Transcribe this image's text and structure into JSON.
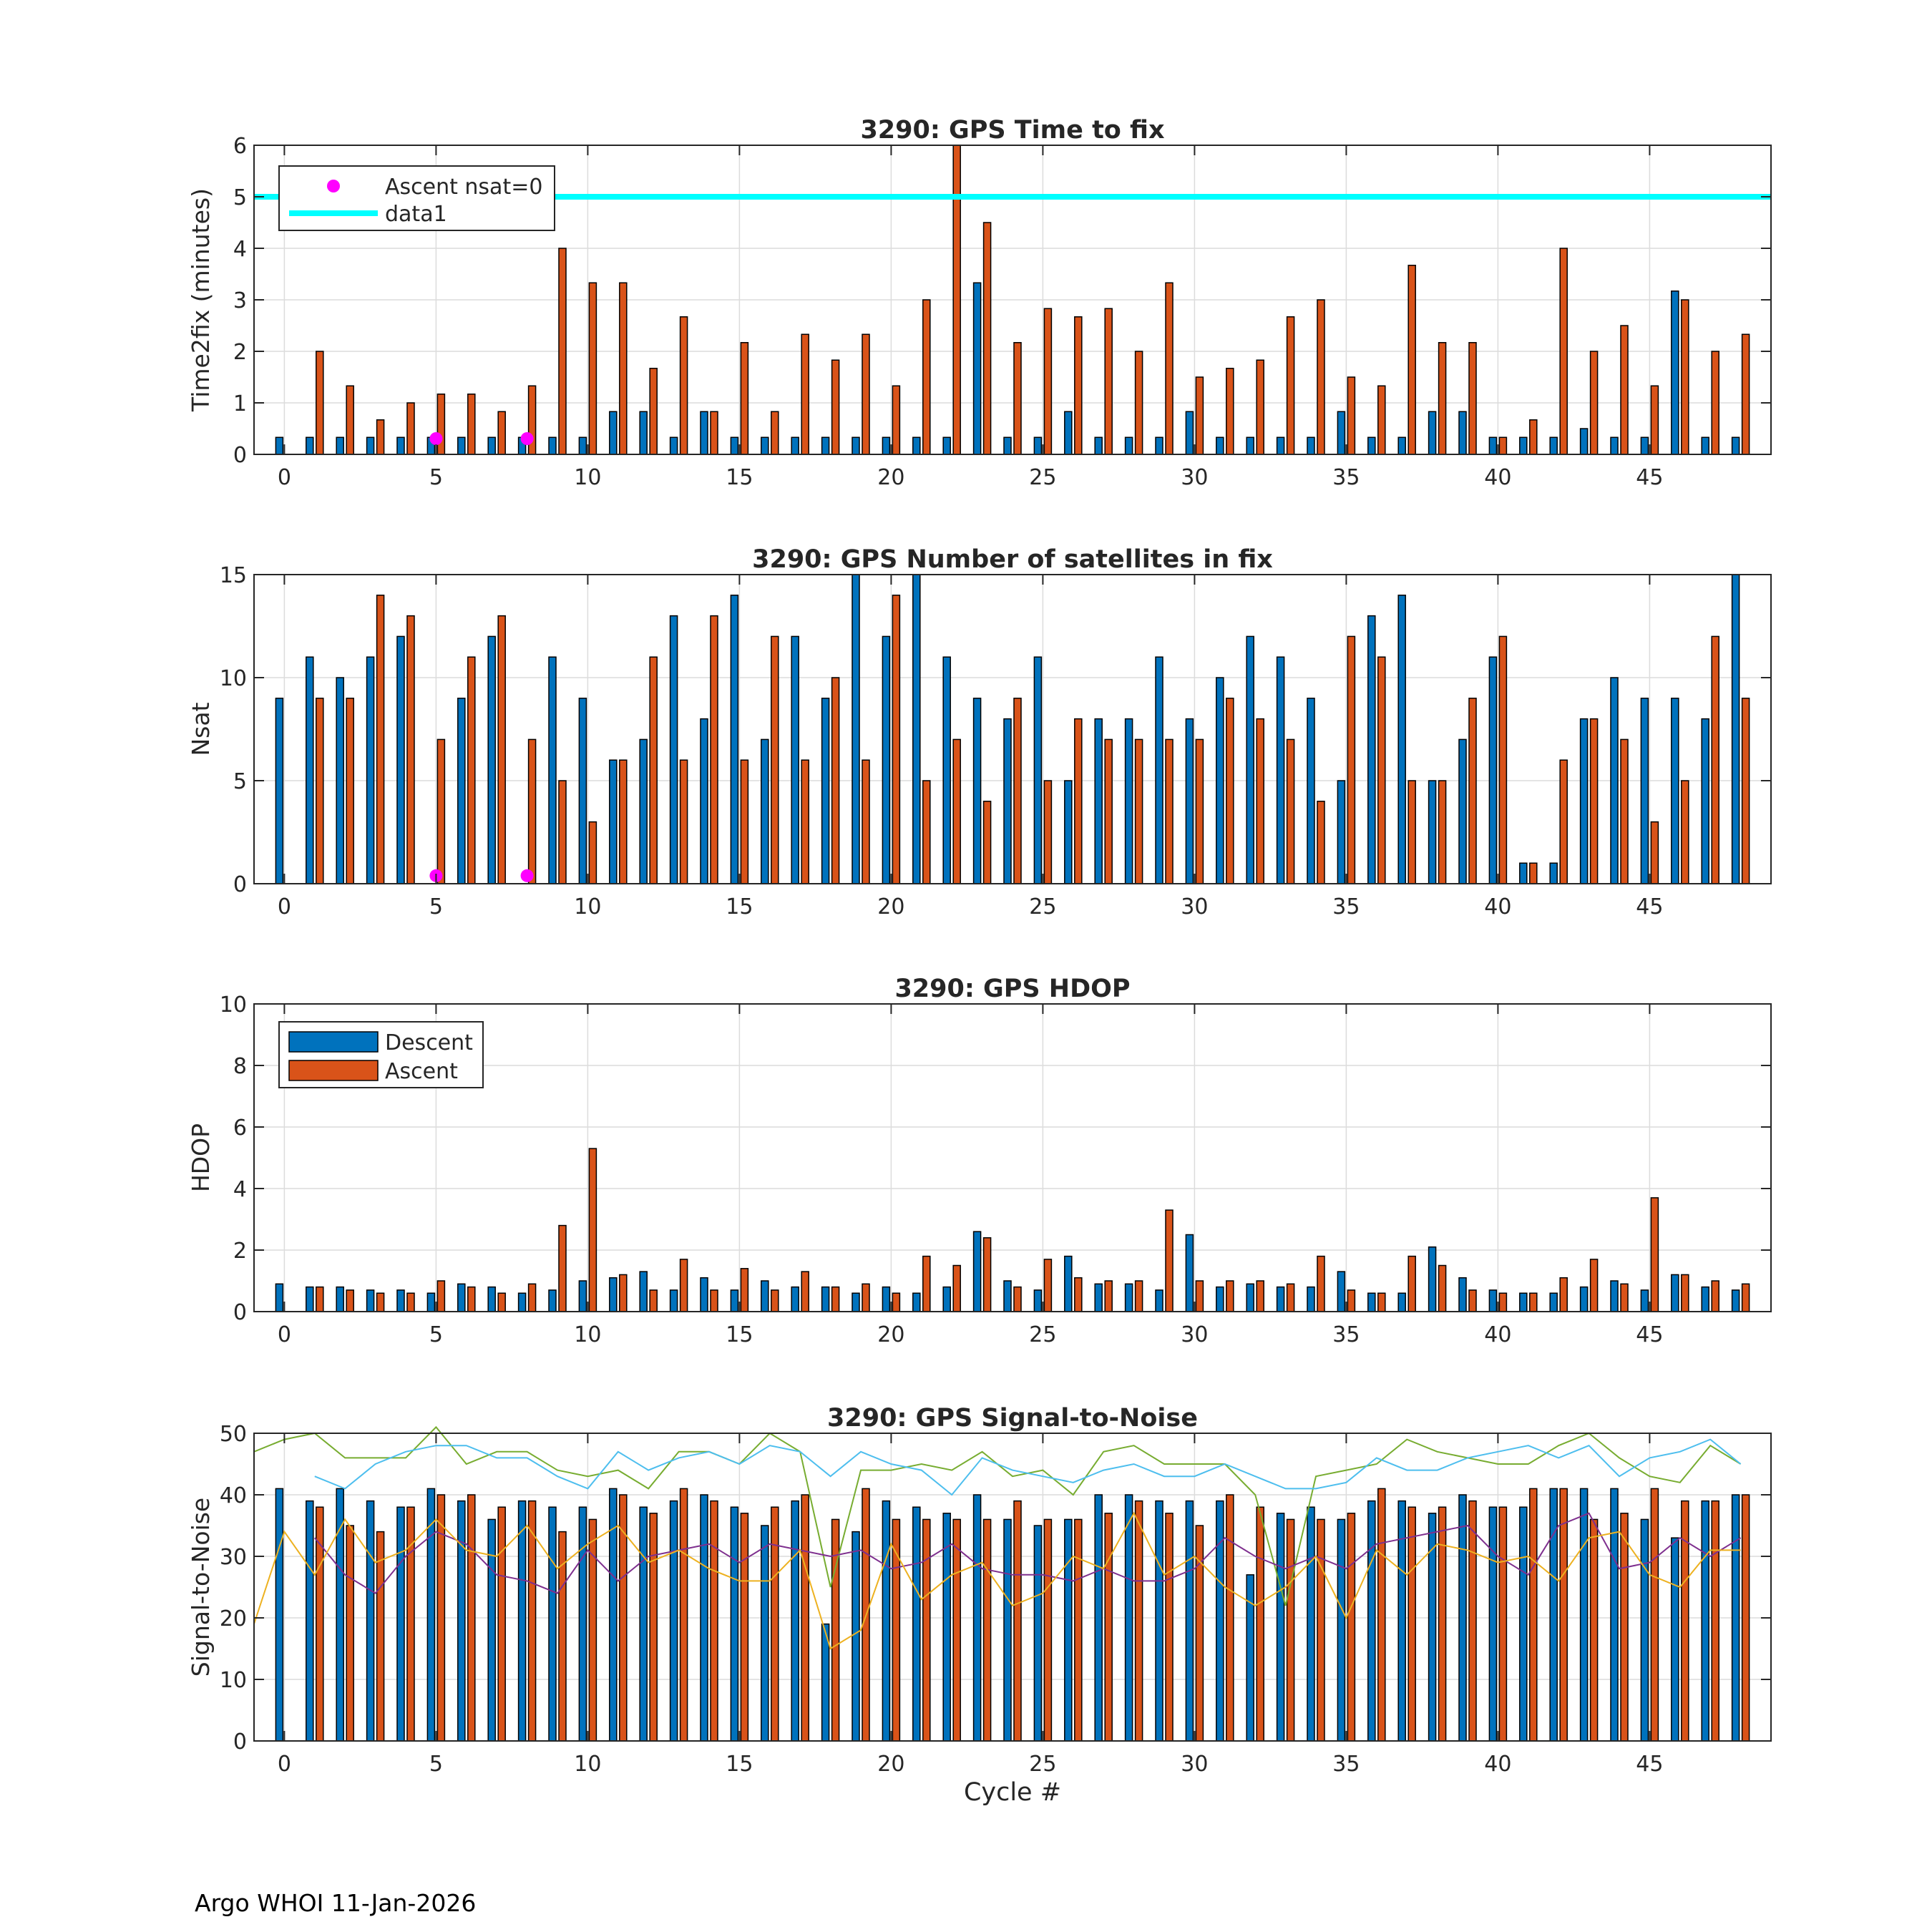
{
  "footer": "Argo WHOI 11-Jan-2026",
  "colors": {
    "descent": "#0072BD",
    "ascent": "#D95319",
    "zero_marker": "#FF00FF",
    "threshold": "#00FFFF",
    "snr_line1": "#77AC30",
    "snr_line2": "#4DBEEE",
    "snr_line3": "#7E2F8E",
    "snr_line4": "#EDB120"
  },
  "chart_data": [
    {
      "type": "bar",
      "title": "3290: GPS Time to fix",
      "ylabel": "Time2fix (minutes)",
      "xlabel": "",
      "xlim": [
        -1,
        49
      ],
      "ylim": [
        0,
        6
      ],
      "yticks": [
        0,
        1,
        2,
        3,
        4,
        5,
        6
      ],
      "xticks": [
        0,
        5,
        10,
        15,
        20,
        25,
        30,
        35,
        40,
        45
      ],
      "grid": true,
      "legend": {
        "location": "top-left",
        "entries": [
          "Ascent nsat=0",
          "data1"
        ]
      },
      "threshold": {
        "name": "data1",
        "y": 5
      },
      "zero_nsat_markers": {
        "name": "Ascent nsat=0",
        "x": [
          5,
          8
        ],
        "y": [
          0.25,
          0.25
        ]
      },
      "series": [
        {
          "name": "Descent",
          "values": [
            0.33,
            0.33,
            0.33,
            0.33,
            0.33,
            0.33,
            0.33,
            0.33,
            0.33,
            0.33,
            0.33,
            0.83,
            0.83,
            0.33,
            0.83,
            0.33,
            0.33,
            0.33,
            0.33,
            0.33,
            0.33,
            0.33,
            0.33,
            3.33,
            0.33,
            0.33,
            0.83,
            0.33,
            0.33,
            0.33,
            0.83,
            0.33,
            0.33,
            0.33,
            0.33,
            0.83,
            0.33,
            0.33,
            0.83,
            0.83,
            0.33,
            0.33,
            0.33,
            0.5,
            0.33,
            0.33,
            3.17,
            0.33,
            0.33
          ]
        },
        {
          "name": "Ascent",
          "values": [
            null,
            2.0,
            1.33,
            0.67,
            1.0,
            1.17,
            1.17,
            0.83,
            1.33,
            4.0,
            3.33,
            3.33,
            1.67,
            2.67,
            0.83,
            2.17,
            0.83,
            2.33,
            1.83,
            2.33,
            1.33,
            3.0,
            6.0,
            4.5,
            2.17,
            2.83,
            2.67,
            2.83,
            2.0,
            3.33,
            1.5,
            1.67,
            1.83,
            2.67,
            3.0,
            1.5,
            1.33,
            3.67,
            2.17,
            2.17,
            0.33,
            0.67,
            4.0,
            2.0,
            2.5,
            1.33,
            3.0,
            2.0,
            2.33
          ]
        }
      ]
    },
    {
      "type": "bar",
      "title": "3290: GPS Number of satellites in fix",
      "ylabel": "Nsat",
      "xlabel": "",
      "xlim": [
        -1,
        49
      ],
      "ylim": [
        0,
        15
      ],
      "yticks": [
        0,
        5,
        10,
        15
      ],
      "xticks": [
        0,
        5,
        10,
        15,
        20,
        25,
        30,
        35,
        40,
        45
      ],
      "grid": true,
      "zero_nsat_markers": {
        "name": "Ascent nsat=0",
        "x": [
          5,
          8
        ],
        "y": [
          0.25,
          0.25
        ]
      },
      "series": [
        {
          "name": "Descent",
          "values": [
            9,
            11,
            10,
            11,
            12,
            null,
            9,
            12,
            null,
            11,
            9,
            6,
            7,
            13,
            8,
            14,
            7,
            12,
            9,
            15,
            12,
            15,
            11,
            9,
            8,
            11,
            5,
            8,
            8,
            11,
            8,
            10,
            12,
            11,
            9,
            5,
            13,
            14,
            5,
            7,
            11,
            1,
            1,
            8,
            10,
            9,
            9,
            8,
            15
          ]
        },
        {
          "name": "Ascent",
          "values": [
            null,
            9,
            9,
            14,
            13,
            7,
            11,
            13,
            7,
            5,
            3,
            6,
            11,
            6,
            13,
            6,
            12,
            6,
            10,
            6,
            14,
            5,
            7,
            4,
            9,
            5,
            8,
            7,
            7,
            7,
            7,
            9,
            8,
            7,
            4,
            12,
            11,
            5,
            5,
            9,
            12,
            1,
            6,
            8,
            7,
            3,
            5,
            12,
            9
          ]
        }
      ]
    },
    {
      "type": "bar",
      "title": "3290: GPS HDOP",
      "ylabel": "HDOP",
      "xlabel": "",
      "xlim": [
        -1,
        49
      ],
      "ylim": [
        0,
        10
      ],
      "yticks": [
        0,
        2,
        4,
        6,
        8,
        10
      ],
      "xticks": [
        0,
        5,
        10,
        15,
        20,
        25,
        30,
        35,
        40,
        45
      ],
      "grid": true,
      "legend": {
        "location": "top-left",
        "entries": [
          "Descent",
          "Ascent"
        ]
      },
      "series": [
        {
          "name": "Descent",
          "values": [
            0.9,
            0.8,
            0.8,
            0.7,
            0.7,
            0.6,
            0.9,
            0.8,
            0.6,
            0.7,
            1.0,
            1.1,
            1.3,
            0.7,
            1.1,
            0.7,
            1.0,
            0.8,
            0.8,
            0.6,
            0.8,
            0.6,
            0.8,
            2.6,
            1.0,
            0.7,
            1.8,
            0.9,
            0.9,
            0.7,
            2.5,
            0.8,
            0.9,
            0.8,
            0.8,
            1.3,
            0.6,
            0.6,
            2.1,
            1.1,
            0.7,
            0.6,
            0.6,
            0.8,
            1.0,
            0.7,
            1.2,
            0.8,
            0.7
          ]
        },
        {
          "name": "Ascent",
          "values": [
            null,
            0.8,
            0.7,
            0.6,
            0.6,
            1.0,
            0.8,
            0.6,
            0.9,
            2.8,
            5.3,
            1.2,
            0.7,
            1.7,
            0.7,
            1.4,
            0.7,
            1.3,
            0.8,
            0.9,
            0.6,
            1.8,
            1.5,
            2.4,
            0.8,
            1.7,
            1.1,
            1.0,
            1.0,
            3.3,
            1.0,
            1.0,
            1.0,
            0.9,
            1.8,
            0.7,
            0.6,
            1.8,
            1.5,
            0.7,
            0.6,
            0.6,
            1.1,
            1.7,
            0.9,
            3.7,
            1.2,
            1.0,
            0.9
          ]
        }
      ]
    },
    {
      "type": "bar",
      "title": "3290: GPS Signal-to-Noise",
      "ylabel": "Signal-to-Noise",
      "xlabel": "Cycle #",
      "xlim": [
        -1,
        49
      ],
      "ylim": [
        0,
        50
      ],
      "yticks": [
        0,
        10,
        20,
        30,
        40,
        50
      ],
      "xticks": [
        0,
        5,
        10,
        15,
        20,
        25,
        30,
        35,
        40,
        45
      ],
      "grid": true,
      "series": [
        {
          "name": "Descent",
          "values": [
            41,
            39,
            41,
            39,
            38,
            41,
            39,
            36,
            39,
            38,
            38,
            41,
            38,
            39,
            40,
            38,
            35,
            39,
            19,
            34,
            39,
            38,
            37,
            40,
            36,
            35,
            36,
            40,
            40,
            39,
            39,
            39,
            27,
            37,
            38,
            36,
            39,
            39,
            37,
            40,
            38,
            38,
            41,
            41,
            41,
            36,
            33,
            39,
            40
          ]
        },
        {
          "name": "Ascent",
          "values": [
            null,
            38,
            35,
            34,
            38,
            40,
            40,
            38,
            39,
            34,
            36,
            40,
            37,
            41,
            39,
            37,
            38,
            40,
            36,
            41,
            36,
            36,
            36,
            36,
            39,
            36,
            36,
            37,
            39,
            37,
            35,
            40,
            38,
            36,
            36,
            37,
            41,
            38,
            38,
            39,
            38,
            41,
            41,
            36,
            37,
            41,
            39,
            39,
            40
          ]
        }
      ],
      "lines": [
        {
          "name": "snr_line1",
          "x": [
            -1,
            0,
            1,
            2,
            3,
            4,
            5,
            6,
            7,
            8,
            9,
            10,
            11,
            12,
            13,
            14,
            15,
            16,
            17,
            18,
            19,
            20,
            21,
            22,
            23,
            24,
            25,
            26,
            27,
            28,
            29,
            30,
            31,
            32,
            33,
            34,
            35,
            36,
            37,
            38,
            39,
            40,
            41,
            42,
            43,
            44,
            45,
            46,
            47,
            48
          ],
          "values": [
            47,
            49,
            50,
            46,
            46,
            46,
            51,
            45,
            47,
            47,
            44,
            43,
            44,
            41,
            47,
            47,
            45,
            50,
            47,
            25,
            44,
            44,
            45,
            44,
            47,
            43,
            44,
            40,
            47,
            48,
            45,
            45,
            45,
            40,
            22,
            43,
            44,
            45,
            49,
            47,
            46,
            45,
            45,
            48,
            50,
            46,
            43,
            42,
            48,
            45
          ]
        },
        {
          "name": "snr_line2",
          "x": [
            1,
            2,
            3,
            4,
            5,
            6,
            7,
            8,
            9,
            10,
            11,
            12,
            13,
            14,
            15,
            16,
            17,
            18,
            19,
            20,
            21,
            22,
            23,
            24,
            25,
            26,
            27,
            28,
            29,
            30,
            31,
            32,
            33,
            34,
            35,
            36,
            37,
            38,
            39,
            40,
            41,
            42,
            43,
            44,
            45,
            46,
            47,
            48
          ],
          "values": [
            43,
            41,
            45,
            47,
            48,
            48,
            46,
            46,
            43,
            41,
            47,
            44,
            46,
            47,
            45,
            48,
            47,
            43,
            47,
            45,
            44,
            40,
            46,
            44,
            43,
            42,
            44,
            45,
            43,
            43,
            45,
            43,
            41,
            41,
            42,
            46,
            44,
            44,
            46,
            47,
            48,
            46,
            48,
            43,
            46,
            47,
            49,
            45
          ]
        },
        {
          "name": "snr_line3",
          "x": [
            1,
            2,
            3,
            4,
            5,
            6,
            7,
            8,
            9,
            10,
            11,
            12,
            13,
            14,
            15,
            16,
            17,
            18,
            19,
            20,
            21,
            22,
            23,
            24,
            25,
            26,
            27,
            28,
            29,
            30,
            31,
            32,
            33,
            34,
            35,
            36,
            37,
            38,
            39,
            40,
            41,
            42,
            43,
            44,
            45,
            46,
            47,
            48
          ],
          "values": [
            33,
            27,
            24,
            30,
            34,
            32,
            27,
            26,
            24,
            31,
            26,
            30,
            31,
            32,
            29,
            32,
            31,
            30,
            31,
            28,
            29,
            32,
            28,
            27,
            27,
            26,
            28,
            26,
            26,
            28,
            33,
            30,
            28,
            30,
            28,
            32,
            33,
            34,
            35,
            30,
            27,
            35,
            37,
            28,
            29,
            33,
            30,
            33
          ]
        },
        {
          "name": "snr_line4",
          "x": [
            -1,
            0,
            1,
            2,
            3,
            4,
            5,
            6,
            7,
            8,
            9,
            10,
            11,
            12,
            13,
            14,
            15,
            16,
            17,
            18,
            19,
            20,
            21,
            22,
            23,
            24,
            25,
            26,
            27,
            28,
            29,
            30,
            31,
            32,
            33,
            34,
            35,
            36,
            37,
            38,
            39,
            40,
            41,
            42,
            43,
            44,
            45,
            46,
            47,
            48
          ],
          "values": [
            19,
            34,
            27,
            36,
            29,
            31,
            36,
            31,
            30,
            35,
            28,
            32,
            35,
            29,
            31,
            28,
            26,
            26,
            31,
            15,
            18,
            32,
            23,
            27,
            29,
            22,
            24,
            30,
            28,
            37,
            27,
            30,
            25,
            22,
            25,
            30,
            20,
            31,
            27,
            32,
            31,
            29,
            30,
            26,
            33,
            34,
            27,
            25,
            31,
            31
          ]
        }
      ]
    }
  ]
}
